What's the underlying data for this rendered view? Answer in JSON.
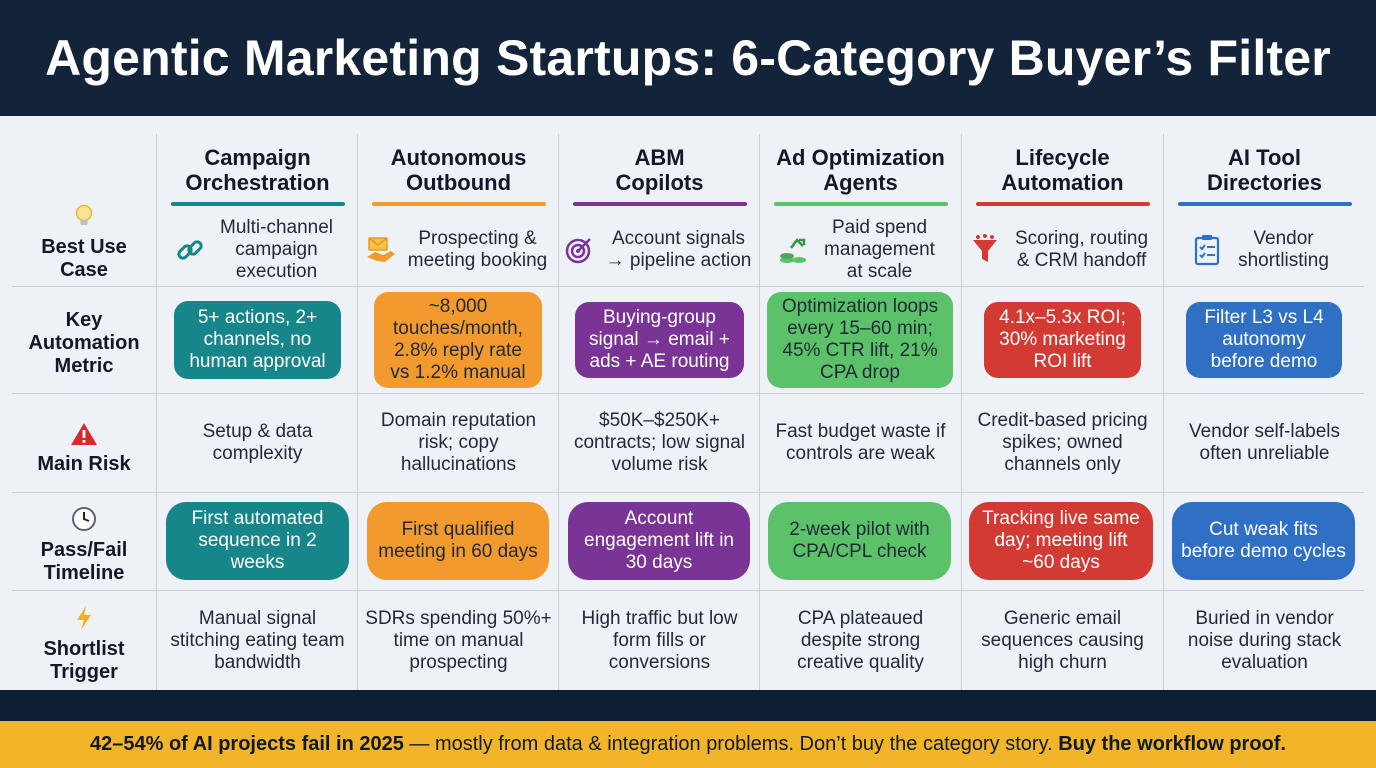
{
  "title": "Agentic Marketing Startups: 6-Category Buyer’s Filter",
  "rows": {
    "use_case": "Best Use Case",
    "metric": "Key Automation Metric",
    "risk": "Main Risk",
    "timeline": "Pass/Fail Timeline",
    "trigger": "Shortlist Trigger"
  },
  "row_icons": [
    "lightbulb-icon",
    "warning-icon",
    "clock-icon",
    "lightning-icon"
  ],
  "columns": [
    {
      "name": "Campaign Orchestration",
      "color": "#17868a",
      "icon": "link-icon",
      "use_case": "Multi-channel campaign execution",
      "metric": "5+ actions, 2+ channels, no human approval",
      "risk": "Setup & data complexity",
      "timeline": "First automated sequence in 2 weeks",
      "trigger": "Manual signal stitching eating team bandwidth"
    },
    {
      "name": "Autonomous Outbound",
      "color": "#f29a2e",
      "icon": "handshake-icon",
      "use_case": "Prospecting & meeting booking",
      "metric": "~8,000 touches/month, 2.8% reply rate vs 1.2% manual",
      "risk": "Domain reputation risk; copy hallucinations",
      "timeline": "First qualified meeting in 60 days",
      "trigger": "SDRs spending 50%+ time on manual prospecting"
    },
    {
      "name": "ABM Copilots",
      "color": "#7a3496",
      "icon": "target-icon",
      "use_case": "Account signals → pipeline action",
      "metric": "Buying-group signal → email + ads + AE routing",
      "risk": "$50K–$250K+ contracts; low signal volume risk",
      "timeline": "Account engagement lift in 30 days",
      "trigger": "High traffic but low form fills or conversions"
    },
    {
      "name": "Ad Optimization Agents",
      "color": "#5cc26a",
      "icon": "money-growth-icon",
      "use_case": "Paid spend management at scale",
      "metric": "Optimization loops every 15–60 min; 45% CTR lift, 21% CPA drop",
      "risk": "Fast budget waste if controls are weak",
      "timeline": "2-week pilot with CPA/CPL check",
      "trigger": "CPA plateaued despite strong creative quality"
    },
    {
      "name": "Lifecycle Automation",
      "color": "#d23a33",
      "icon": "funnel-icon",
      "use_case": "Scoring, routing & CRM handoff",
      "metric": "4.1x–5.3x ROI; 30% marketing ROI lift",
      "risk": "Credit-based pricing spikes; owned channels only",
      "timeline": "Tracking live same day; meeting lift ~60 days",
      "trigger": "Generic email sequences causing high churn"
    },
    {
      "name": "AI Tool Directories",
      "color": "#2f6fc4",
      "icon": "checklist-icon",
      "use_case": "Vendor shortlisting",
      "metric": "Filter L3 vs L4 autonomy before demo",
      "risk": "Vendor self-labels often unreliable",
      "timeline": "Cut weak fits before demo cycles",
      "trigger": "Buried in vendor noise during stack evaluation"
    }
  ],
  "footer": {
    "part1": "42–54% of AI projects fail in 2025",
    "part2": " — mostly from data & integration problems. Don’t buy the category story. ",
    "part3": "Buy the workflow proof."
  }
}
